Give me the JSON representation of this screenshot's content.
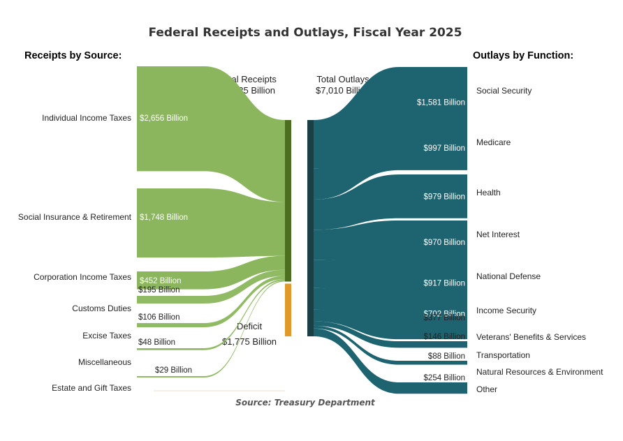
{
  "title": "Federal Receipts and Outlays, Fiscal Year 2025",
  "receipts_heading": "Receipts by Source:",
  "outlays_heading": "Outlays by Function:",
  "total_receipts": {
    "label": "Total Receipts",
    "value": "$5,235 Billion"
  },
  "total_outlays": {
    "label": "Total Outlays",
    "value": "$7,010 Billion"
  },
  "deficit": {
    "label": "Deficit",
    "value": "$1,775 Billion"
  },
  "source_note": "Source: Treasury Department",
  "colors": {
    "receipts": "#8bb65d",
    "receipts_node": "#4b6e1f",
    "outlays": "#1d6470",
    "outlays_node": "#1a3f45",
    "deficit_node": "#e0992a"
  },
  "chart_data": {
    "type": "sankey",
    "receipts": [
      {
        "name": "Individual Income Taxes",
        "value": 2656,
        "label": "$2,656 Billion"
      },
      {
        "name": "Social Insurance & Retirement",
        "value": 1748,
        "label": "$1,748 Billion"
      },
      {
        "name": "Corporation Income Taxes",
        "value": 452,
        "label": "$452 Billion"
      },
      {
        "name": "Customs Duties",
        "value": 195,
        "label": "$195 Billion"
      },
      {
        "name": "Excise Taxes",
        "value": 106,
        "label": "$106 Billion"
      },
      {
        "name": "Miscellaneous",
        "value": 48,
        "label": "$48 Billion"
      },
      {
        "name": "Estate and Gift Taxes",
        "value": 29,
        "label": "$29 Billion"
      }
    ],
    "outlays": [
      {
        "name": "Social Security",
        "value": 1581,
        "label": "$1,581 Billion"
      },
      {
        "name": "Medicare",
        "value": 997,
        "label": "$997 Billion"
      },
      {
        "name": "Health",
        "value": 979,
        "label": "$979 Billion"
      },
      {
        "name": "Net Interest",
        "value": 970,
        "label": "$970 Billion"
      },
      {
        "name": "National Defense",
        "value": 917,
        "label": "$917 Billion"
      },
      {
        "name": "Income Security",
        "value": 702,
        "label": "$702 Billion"
      },
      {
        "name": "Veterans' Benefits & Services",
        "value": 377,
        "label": "$377 Billion"
      },
      {
        "name": "Transportation",
        "value": 146,
        "label": "$146 Billion"
      },
      {
        "name": "Natural Resources & Environment",
        "value": 88,
        "label": "$88 Billion"
      },
      {
        "name": "Other",
        "value": 254,
        "label": "$254 Billion"
      }
    ],
    "total_receipts": 5235,
    "total_outlays": 7010,
    "deficit": 1775
  }
}
